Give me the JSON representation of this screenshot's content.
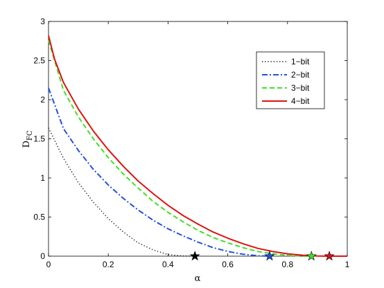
{
  "chart_data": {
    "type": "line",
    "xlabel": "α",
    "ylabel_main": "D",
    "ylabel_sub": "FC",
    "xlim": [
      0,
      1
    ],
    "ylim": [
      0,
      3
    ],
    "x_ticks": [
      "0",
      "0.2",
      "0.4",
      "0.6",
      "0.8",
      "1"
    ],
    "y_ticks": [
      "0",
      "0.5",
      "1",
      "1.5",
      "2",
      "2.5",
      "3"
    ],
    "grid": false,
    "legend_position": "top-right",
    "series": [
      {
        "name": "1−bit",
        "color": "#000000",
        "style": "dotted",
        "x": [
          0,
          0.05,
          0.1,
          0.15,
          0.2,
          0.25,
          0.3,
          0.35,
          0.4,
          0.45,
          0.49
        ],
        "y": [
          1.64,
          1.25,
          0.94,
          0.69,
          0.48,
          0.31,
          0.17,
          0.08,
          0.02,
          0.003,
          0
        ],
        "marker": {
          "x": 0.49,
          "y": 0
        }
      },
      {
        "name": "2−bit",
        "color": "#2050d8",
        "style": "dashdot",
        "x": [
          0,
          0.05,
          0.1,
          0.15,
          0.2,
          0.25,
          0.3,
          0.35,
          0.4,
          0.45,
          0.5,
          0.55,
          0.6,
          0.65,
          0.7,
          0.74
        ],
        "y": [
          2.15,
          1.63,
          1.35,
          1.11,
          0.91,
          0.74,
          0.59,
          0.46,
          0.35,
          0.26,
          0.18,
          0.11,
          0.06,
          0.025,
          0.005,
          0
        ],
        "marker": {
          "x": 0.74,
          "y": 0
        }
      },
      {
        "name": "3−bit",
        "color": "#40e020",
        "style": "dashed",
        "x": [
          0,
          0.05,
          0.1,
          0.15,
          0.2,
          0.25,
          0.3,
          0.35,
          0.4,
          0.45,
          0.5,
          0.55,
          0.6,
          0.65,
          0.7,
          0.75,
          0.8,
          0.85,
          0.88
        ],
        "y": [
          2.76,
          2.12,
          1.78,
          1.5,
          1.26,
          1.05,
          0.87,
          0.7,
          0.56,
          0.44,
          0.33,
          0.24,
          0.17,
          0.11,
          0.06,
          0.03,
          0.01,
          0.001,
          0
        ],
        "marker": {
          "x": 0.88,
          "y": 0
        }
      },
      {
        "name": "4−bit",
        "color": "#e01010",
        "style": "solid",
        "x": [
          0,
          0.02,
          0.05,
          0.1,
          0.15,
          0.2,
          0.25,
          0.3,
          0.35,
          0.4,
          0.45,
          0.5,
          0.55,
          0.6,
          0.65,
          0.7,
          0.75,
          0.8,
          0.85,
          0.9,
          0.94,
          1.0
        ],
        "y": [
          2.82,
          2.52,
          2.22,
          1.88,
          1.6,
          1.36,
          1.15,
          0.96,
          0.8,
          0.65,
          0.52,
          0.41,
          0.31,
          0.23,
          0.16,
          0.1,
          0.06,
          0.03,
          0.012,
          0.002,
          0,
          0
        ],
        "marker": {
          "x": 0.94,
          "y": 0
        }
      }
    ]
  }
}
